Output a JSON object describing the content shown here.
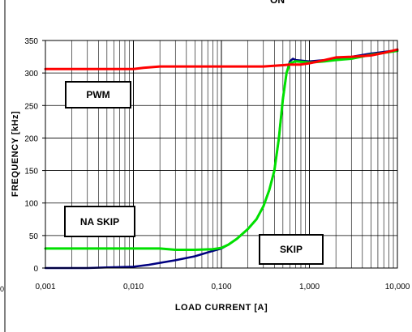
{
  "header_fragment": "ON",
  "corner_mark": "0",
  "colors": {
    "pwm": "#ff0000",
    "skip": "#00e000",
    "na_skip": "#000080",
    "grid": "#000000"
  },
  "chart_data": {
    "type": "line",
    "title": "",
    "xlabel": "LOAD CURRENT [A]",
    "ylabel": "FREQUENCY [kHz]",
    "x_scale": "log",
    "xlim": [
      0.001,
      10
    ],
    "ylim": [
      0,
      350
    ],
    "x_ticks": [
      0.001,
      0.01,
      0.1,
      1,
      10
    ],
    "x_tick_labels": [
      "0,001",
      "0,010",
      "0,100",
      "1,000",
      "10,000"
    ],
    "y_ticks": [
      0,
      50,
      100,
      150,
      200,
      250,
      300,
      350
    ],
    "y_tick_labels": [
      "0",
      "50",
      "100",
      "150",
      "200",
      "250",
      "300",
      "350"
    ],
    "grid": true,
    "annotations": [
      "PWM",
      "NA SKIP",
      "SKIP"
    ],
    "series": [
      {
        "key": "pwm",
        "x": [
          0.001,
          0.003,
          0.01,
          0.013,
          0.02,
          0.05,
          0.1,
          0.2,
          0.3,
          0.5,
          0.6,
          0.8,
          1,
          1.5,
          2,
          3,
          5,
          7,
          10
        ],
        "y": [
          306,
          306,
          306,
          308,
          310,
          310,
          310,
          310,
          310,
          312,
          313,
          313,
          315,
          320,
          324,
          325,
          327,
          331,
          336
        ]
      },
      {
        "key": "skip",
        "x": [
          0.001,
          0.01,
          0.02,
          0.03,
          0.05,
          0.08,
          0.1,
          0.12,
          0.15,
          0.2,
          0.25,
          0.3,
          0.35,
          0.4,
          0.45,
          0.5,
          0.55,
          0.6,
          0.7,
          1,
          1.5,
          2,
          3,
          5,
          10
        ],
        "y": [
          30,
          30,
          30,
          28,
          28,
          29,
          31,
          36,
          45,
          60,
          75,
          95,
          120,
          150,
          200,
          260,
          300,
          315,
          318,
          316,
          318,
          320,
          322,
          328,
          334
        ]
      },
      {
        "key": "na_skip",
        "x": [
          0.001,
          0.003,
          0.005,
          0.01,
          0.015,
          0.02,
          0.03,
          0.05,
          0.07,
          0.1,
          0.12,
          0.15,
          0.2,
          0.25,
          0.3,
          0.35,
          0.4,
          0.45,
          0.5,
          0.55,
          0.6,
          0.65,
          0.7,
          1,
          1.5,
          2,
          3,
          5,
          10
        ],
        "y": [
          0,
          0,
          1,
          2,
          5,
          8,
          12,
          18,
          24,
          30,
          36,
          45,
          60,
          75,
          95,
          120,
          150,
          200,
          260,
          300,
          318,
          322,
          320,
          318,
          320,
          322,
          325,
          330,
          335
        ]
      }
    ]
  }
}
